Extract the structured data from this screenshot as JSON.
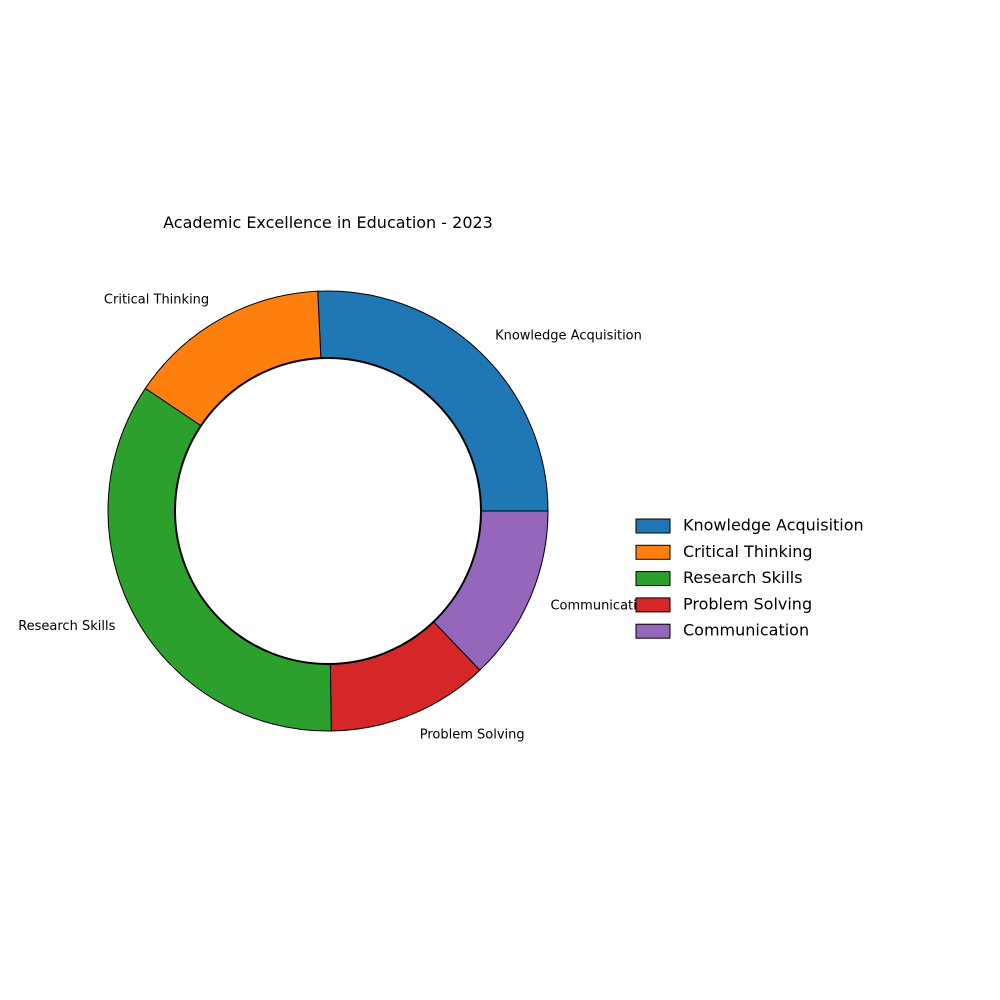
{
  "chart_data": {
    "type": "pie",
    "variant": "donut",
    "title": "Academic Excellence in Education - 2023",
    "categories": [
      "Knowledge Acquisition",
      "Critical Thinking",
      "Research Skills",
      "Problem Solving",
      "Communication"
    ],
    "values": [
      26,
      15,
      35,
      12,
      13
    ],
    "colors": [
      "#1f77b4",
      "#ff7f0e",
      "#2ca02c",
      "#d62728",
      "#9467bd"
    ],
    "legend": {
      "placement": "right",
      "entries": [
        "Knowledge Acquisition",
        "Critical Thinking",
        "Research Skills",
        "Problem Solving",
        "Communication"
      ]
    }
  }
}
